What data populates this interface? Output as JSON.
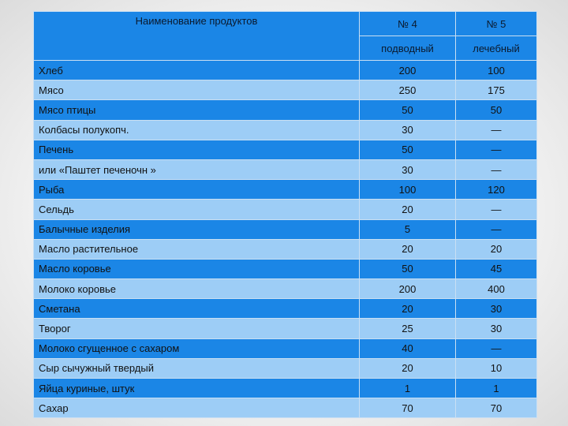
{
  "header": {
    "name": "Наименование продуктов",
    "col4_num": "№ 4",
    "col5_num": "№ 5",
    "col4_sub": "подводный",
    "col5_sub": "лечебный"
  },
  "rows": [
    {
      "name": "Хлеб",
      "v4": "200",
      "v5": "100"
    },
    {
      "name": "Мясо",
      "v4": "250",
      "v5": "175"
    },
    {
      "name": "Мясо птицы",
      "v4": "50",
      "v5": "50"
    },
    {
      "name": "Колбасы полукопч.",
      "v4": "30",
      "v5": "—"
    },
    {
      "name": "Печень",
      "v4": "50",
      "v5": "—"
    },
    {
      "name": "или «Паштет печеночн »",
      "v4": "30",
      "v5": "—"
    },
    {
      "name": "Рыба",
      "v4": "100",
      "v5": "120"
    },
    {
      "name": "Сельдь",
      "v4": "20",
      "v5": "—"
    },
    {
      "name": "Балычные изделия",
      "v4": "5",
      "v5": "—"
    },
    {
      "name": "Масло растительное",
      "v4": "20",
      "v5": "20"
    },
    {
      "name": "Масло коровье",
      "v4": "50",
      "v5": "45"
    },
    {
      "name": "Молоко коровье",
      "v4": "200",
      "v5": "400"
    },
    {
      "name": "Сметана",
      "v4": "20",
      "v5": "30"
    },
    {
      "name": "Творог",
      "v4": "25",
      "v5": "30"
    },
    {
      "name": "Молоко сгущенное с сахаром",
      "v4": "40",
      "v5": "—"
    },
    {
      "name": "Сыр сычужный твердый",
      "v4": "20",
      "v5": "10"
    },
    {
      "name": "Яйца куриные, штук",
      "v4": "1",
      "v5": "1"
    },
    {
      "name": "Сахар",
      "v4": "70",
      "v5": "70"
    }
  ]
}
